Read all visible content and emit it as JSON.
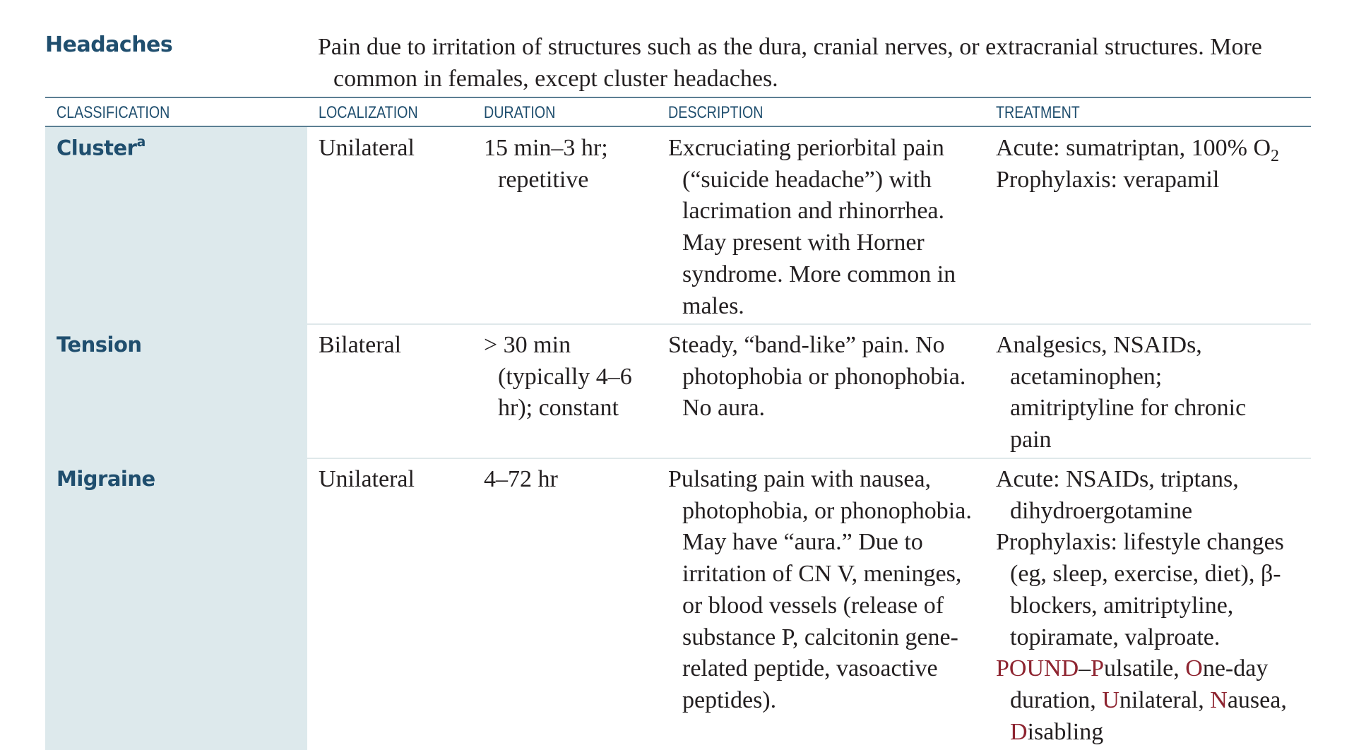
{
  "section": {
    "title": "Headaches",
    "intro": "Pain due to irritation of structures such as the dura, cranial nerves, or extracranial structures. More common in females, except cluster headaches."
  },
  "columns": {
    "classification": "CLASSIFICATION",
    "localization": "LOCALIZATION",
    "duration": "DURATION",
    "description": "DESCRIPTION",
    "treatment": "TREATMENT"
  },
  "rows": [
    {
      "classification": "Cluster",
      "footnote_marker": "a",
      "localization": "Unilateral",
      "duration": "15 min–3 hr; repetitive",
      "description": "Excruciating periorbital pain (“suicide headache”) with lacrimation and rhinorrhea. May present with Horner syndrome. More common in males.",
      "treatment": {
        "acute_prefix": "Acute: sumatriptan, 100% O",
        "acute_subscript": "2",
        "prophylaxis": "Prophylaxis: verapamil"
      }
    },
    {
      "classification": "Tension",
      "localization": "Bilateral",
      "duration": "> 30 min (typically 4–6 hr); constant",
      "description": "Steady, “band-like” pain. No photophobia or phonophobia. No aura.",
      "treatment": {
        "text": "Analgesics, NSAIDs, acetaminophen; amitriptyline for chronic pain"
      }
    },
    {
      "classification": "Migraine",
      "localization": "Unilateral",
      "duration": "4–72 hr",
      "description": "Pulsating pain with nausea, photophobia, or phonophobia. May have “aura.” Due to irritation of CN V, meninges, or blood vessels (release of substance P, calcitonin gene-related peptide, vasoactive peptides).",
      "treatment": {
        "acute": "Acute: NSAIDs, triptans, dihydroergotamine",
        "prophylaxis": "Prophylaxis: lifestyle changes (eg, sleep, exercise, diet), β-blockers, amitriptyline, topiramate, valproate.",
        "mnemonic": {
          "word": "POUND",
          "dash": "–",
          "parts": [
            {
              "letter": "P",
              "rest": "ulsatile, "
            },
            {
              "letter": "O",
              "rest": "ne-day duration, "
            },
            {
              "letter": "U",
              "rest": "nilateral, "
            },
            {
              "letter": "N",
              "rest": "ausea, "
            },
            {
              "letter": "D",
              "rest": "isabling"
            }
          ]
        }
      }
    }
  ],
  "colors": {
    "heading": "#1f4e6e",
    "rule": "#5c7f93",
    "classification_column": "#dde9ec",
    "mnemonic": "#8e2430"
  }
}
